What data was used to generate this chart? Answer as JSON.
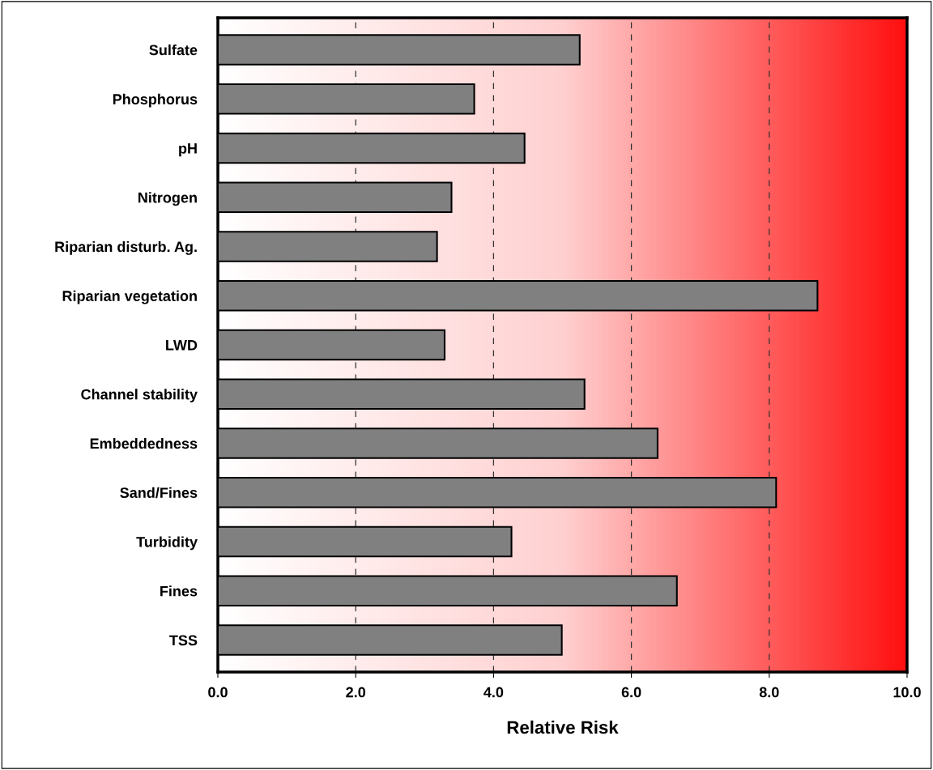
{
  "chart_data": {
    "type": "bar",
    "orientation": "horizontal",
    "xlabel": "Relative Risk",
    "categories": [
      "Sulfate",
      "Phosphorus",
      "pH",
      "Nitrogen",
      "Riparian disturb. Ag.",
      "Riparian vegetation",
      "LWD",
      "Channel stability",
      "Embeddedness",
      "Sand/Fines",
      "Turbidity",
      "Fines",
      "TSS"
    ],
    "values": [
      5.25,
      3.72,
      4.45,
      3.39,
      3.18,
      8.7,
      3.29,
      5.32,
      6.38,
      8.1,
      4.26,
      6.66,
      4.99
    ],
    "color": "#808080",
    "xlim": [
      0,
      10
    ],
    "xticks": [
      {
        "value": 0,
        "label": "0.0"
      },
      {
        "value": 2,
        "label": "2.0"
      },
      {
        "value": 4,
        "label": "4.0"
      },
      {
        "value": 6,
        "label": "6.0"
      },
      {
        "value": 8,
        "label": "8.0"
      },
      {
        "value": 10,
        "label": "10.0"
      }
    ],
    "grid": "x"
  }
}
